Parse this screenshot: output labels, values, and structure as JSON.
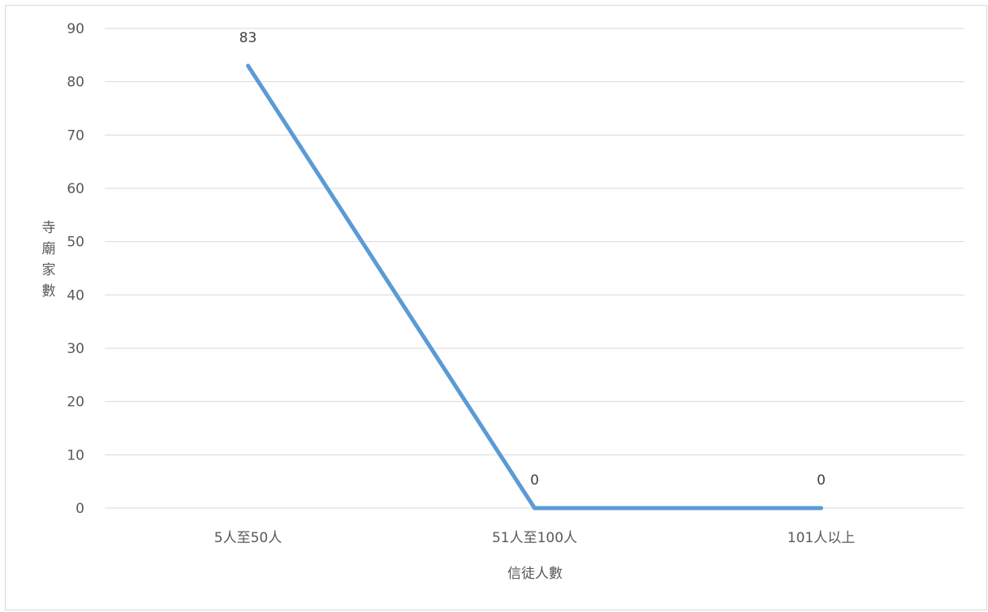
{
  "chart_data": {
    "type": "line",
    "categories": [
      "5人至50人",
      "51人至100人",
      "101人以上"
    ],
    "series": [
      {
        "values": [
          83,
          0,
          0
        ],
        "color": "#5b9bd5"
      }
    ],
    "data_labels": [
      "83",
      "0",
      "0"
    ],
    "xlabel": "信徒人數",
    "ylabel": "寺廟家數",
    "ylim": [
      0,
      90
    ],
    "yticks": [
      0,
      10,
      20,
      30,
      40,
      50,
      60,
      70,
      80,
      90
    ],
    "grid": true,
    "legend": "none"
  }
}
